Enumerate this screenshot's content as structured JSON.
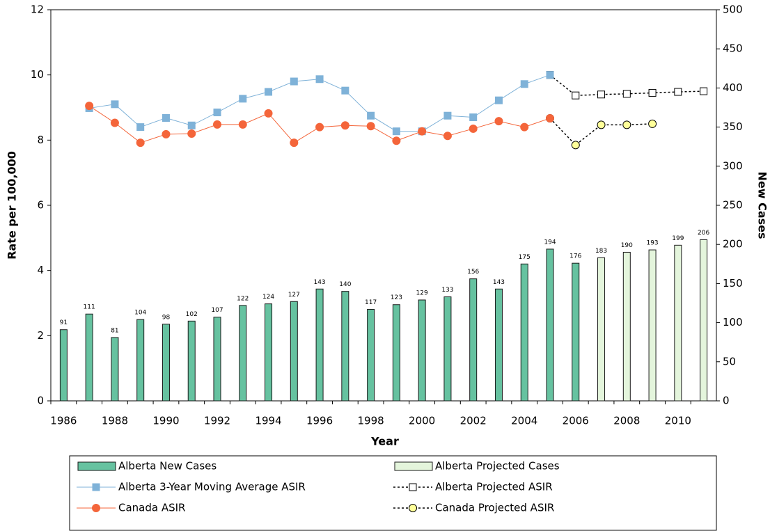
{
  "chart_data": {
    "type": "combo",
    "x_label": "Year",
    "y_label": "Rate per 100,000",
    "y2_label": "New Cases",
    "categories": [
      "1986",
      null,
      "1988",
      null,
      "1990",
      null,
      "1992",
      null,
      "1994",
      null,
      "1996",
      null,
      "1998",
      null,
      "2000",
      null,
      "2002",
      null,
      "2004",
      null,
      "2006",
      null,
      "2008",
      null,
      "2010",
      null
    ],
    "ylim": [
      0,
      12
    ],
    "yticks": [
      0,
      2,
      4,
      6,
      8,
      10,
      12
    ],
    "y2lim": [
      0,
      500
    ],
    "y2ticks": [
      0,
      50,
      100,
      150,
      200,
      250,
      300,
      350,
      400,
      450,
      500
    ],
    "series": [
      {
        "name": "Alberta New Cases",
        "kind": "bar",
        "axis": "y2",
        "color": "#66c2a0",
        "values": [
          91,
          111,
          81,
          104,
          98,
          102,
          107,
          122,
          124,
          127,
          143,
          140,
          117,
          123,
          129,
          133,
          156,
          143,
          175,
          194,
          176,
          null,
          null,
          null,
          null,
          null
        ]
      },
      {
        "name": "Alberta Projected Cases",
        "kind": "bar",
        "axis": "y2",
        "color": "#e4f5dc",
        "values": [
          null,
          null,
          null,
          null,
          null,
          null,
          null,
          null,
          null,
          null,
          null,
          null,
          null,
          null,
          null,
          null,
          null,
          null,
          null,
          null,
          null,
          183,
          190,
          193,
          199,
          206
        ]
      },
      {
        "name": "Alberta 3-Year Moving Average ASIR",
        "kind": "line",
        "color": "#7fb2d8",
        "marker": "square",
        "marker_fill": "#7fb2d8",
        "dashed": false,
        "values": [
          null,
          8.98,
          9.1,
          8.4,
          8.68,
          8.45,
          8.85,
          9.27,
          9.48,
          9.8,
          9.87,
          9.52,
          8.75,
          8.27,
          8.27,
          8.75,
          8.7,
          9.22,
          9.72,
          10.0,
          null,
          null,
          null,
          null,
          null,
          null
        ]
      },
      {
        "name": "Alberta Projected ASIR",
        "kind": "line",
        "color": "#000000",
        "marker": "square",
        "marker_fill": "#ffffff",
        "dashed": true,
        "values": [
          null,
          null,
          null,
          null,
          null,
          null,
          null,
          null,
          null,
          null,
          null,
          null,
          null,
          null,
          null,
          null,
          null,
          null,
          null,
          10.0,
          9.37,
          9.4,
          9.42,
          9.45,
          9.48,
          9.5
        ]
      },
      {
        "name": "Canada ASIR",
        "kind": "line",
        "color": "#f4653a",
        "marker": "circle",
        "marker_fill": "#f4653a",
        "dashed": false,
        "values": [
          null,
          9.05,
          8.53,
          7.92,
          8.18,
          8.2,
          8.48,
          8.48,
          8.82,
          7.92,
          8.4,
          8.45,
          8.43,
          7.98,
          8.27,
          8.13,
          8.35,
          8.58,
          8.4,
          8.67,
          null,
          null,
          null,
          null,
          null,
          null
        ]
      },
      {
        "name": "Canada Projected ASIR",
        "kind": "line",
        "color": "#000000",
        "marker": "circle",
        "marker_fill": "#ffff99",
        "dashed": true,
        "values": [
          null,
          null,
          null,
          null,
          null,
          null,
          null,
          null,
          null,
          null,
          null,
          null,
          null,
          null,
          null,
          null,
          null,
          null,
          null,
          8.67,
          7.85,
          8.47,
          8.47,
          8.5,
          null,
          null
        ]
      }
    ]
  }
}
